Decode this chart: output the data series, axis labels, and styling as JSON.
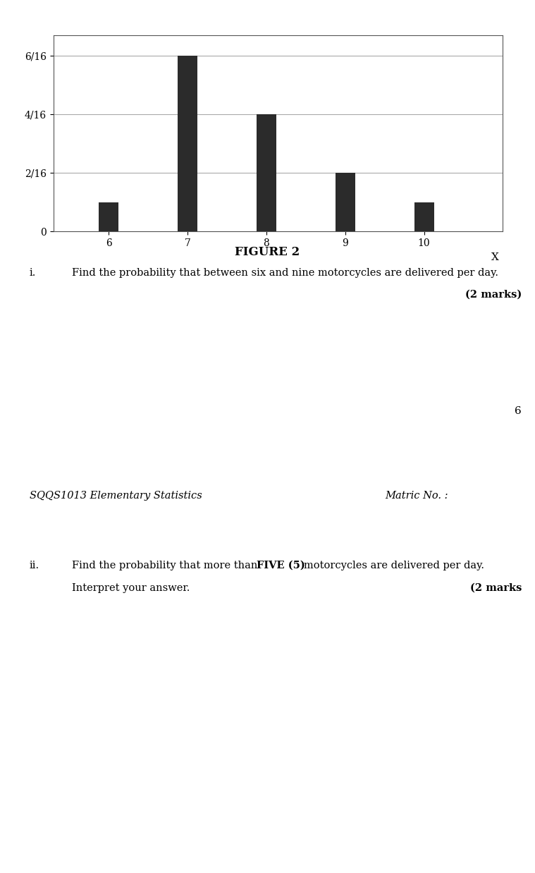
{
  "x_values": [
    6,
    7,
    8,
    9,
    10
  ],
  "y_values": [
    0.0625,
    0.375,
    0.25,
    0.125,
    0.0625
  ],
  "bar_color": "#2b2b2b",
  "bar_width": 0.25,
  "yticks": [
    0,
    0.125,
    0.25,
    0.375
  ],
  "ytick_labels": [
    "0",
    "2/16",
    "4/16",
    "6/16"
  ],
  "xlabel": "X",
  "figure_label": "FIGURE 2",
  "question_i_label": "i.",
  "question_i_text": "Find the probability that between six and nine motorcycles are delivered per day.",
  "question_i_marks": "(2 marks)",
  "page_number": "6",
  "separator_color": "#1a1a1a",
  "course_text": "SQQS1013 Elementary Statistics",
  "matric_text": "Matric No. :",
  "question_ii_label": "ii.",
  "question_ii_marks": "(2 marks",
  "background_top": "#1a1a1a",
  "background_page": "#ffffff",
  "grid_color": "#aaaaaa",
  "chart_border_color": "#555555"
}
